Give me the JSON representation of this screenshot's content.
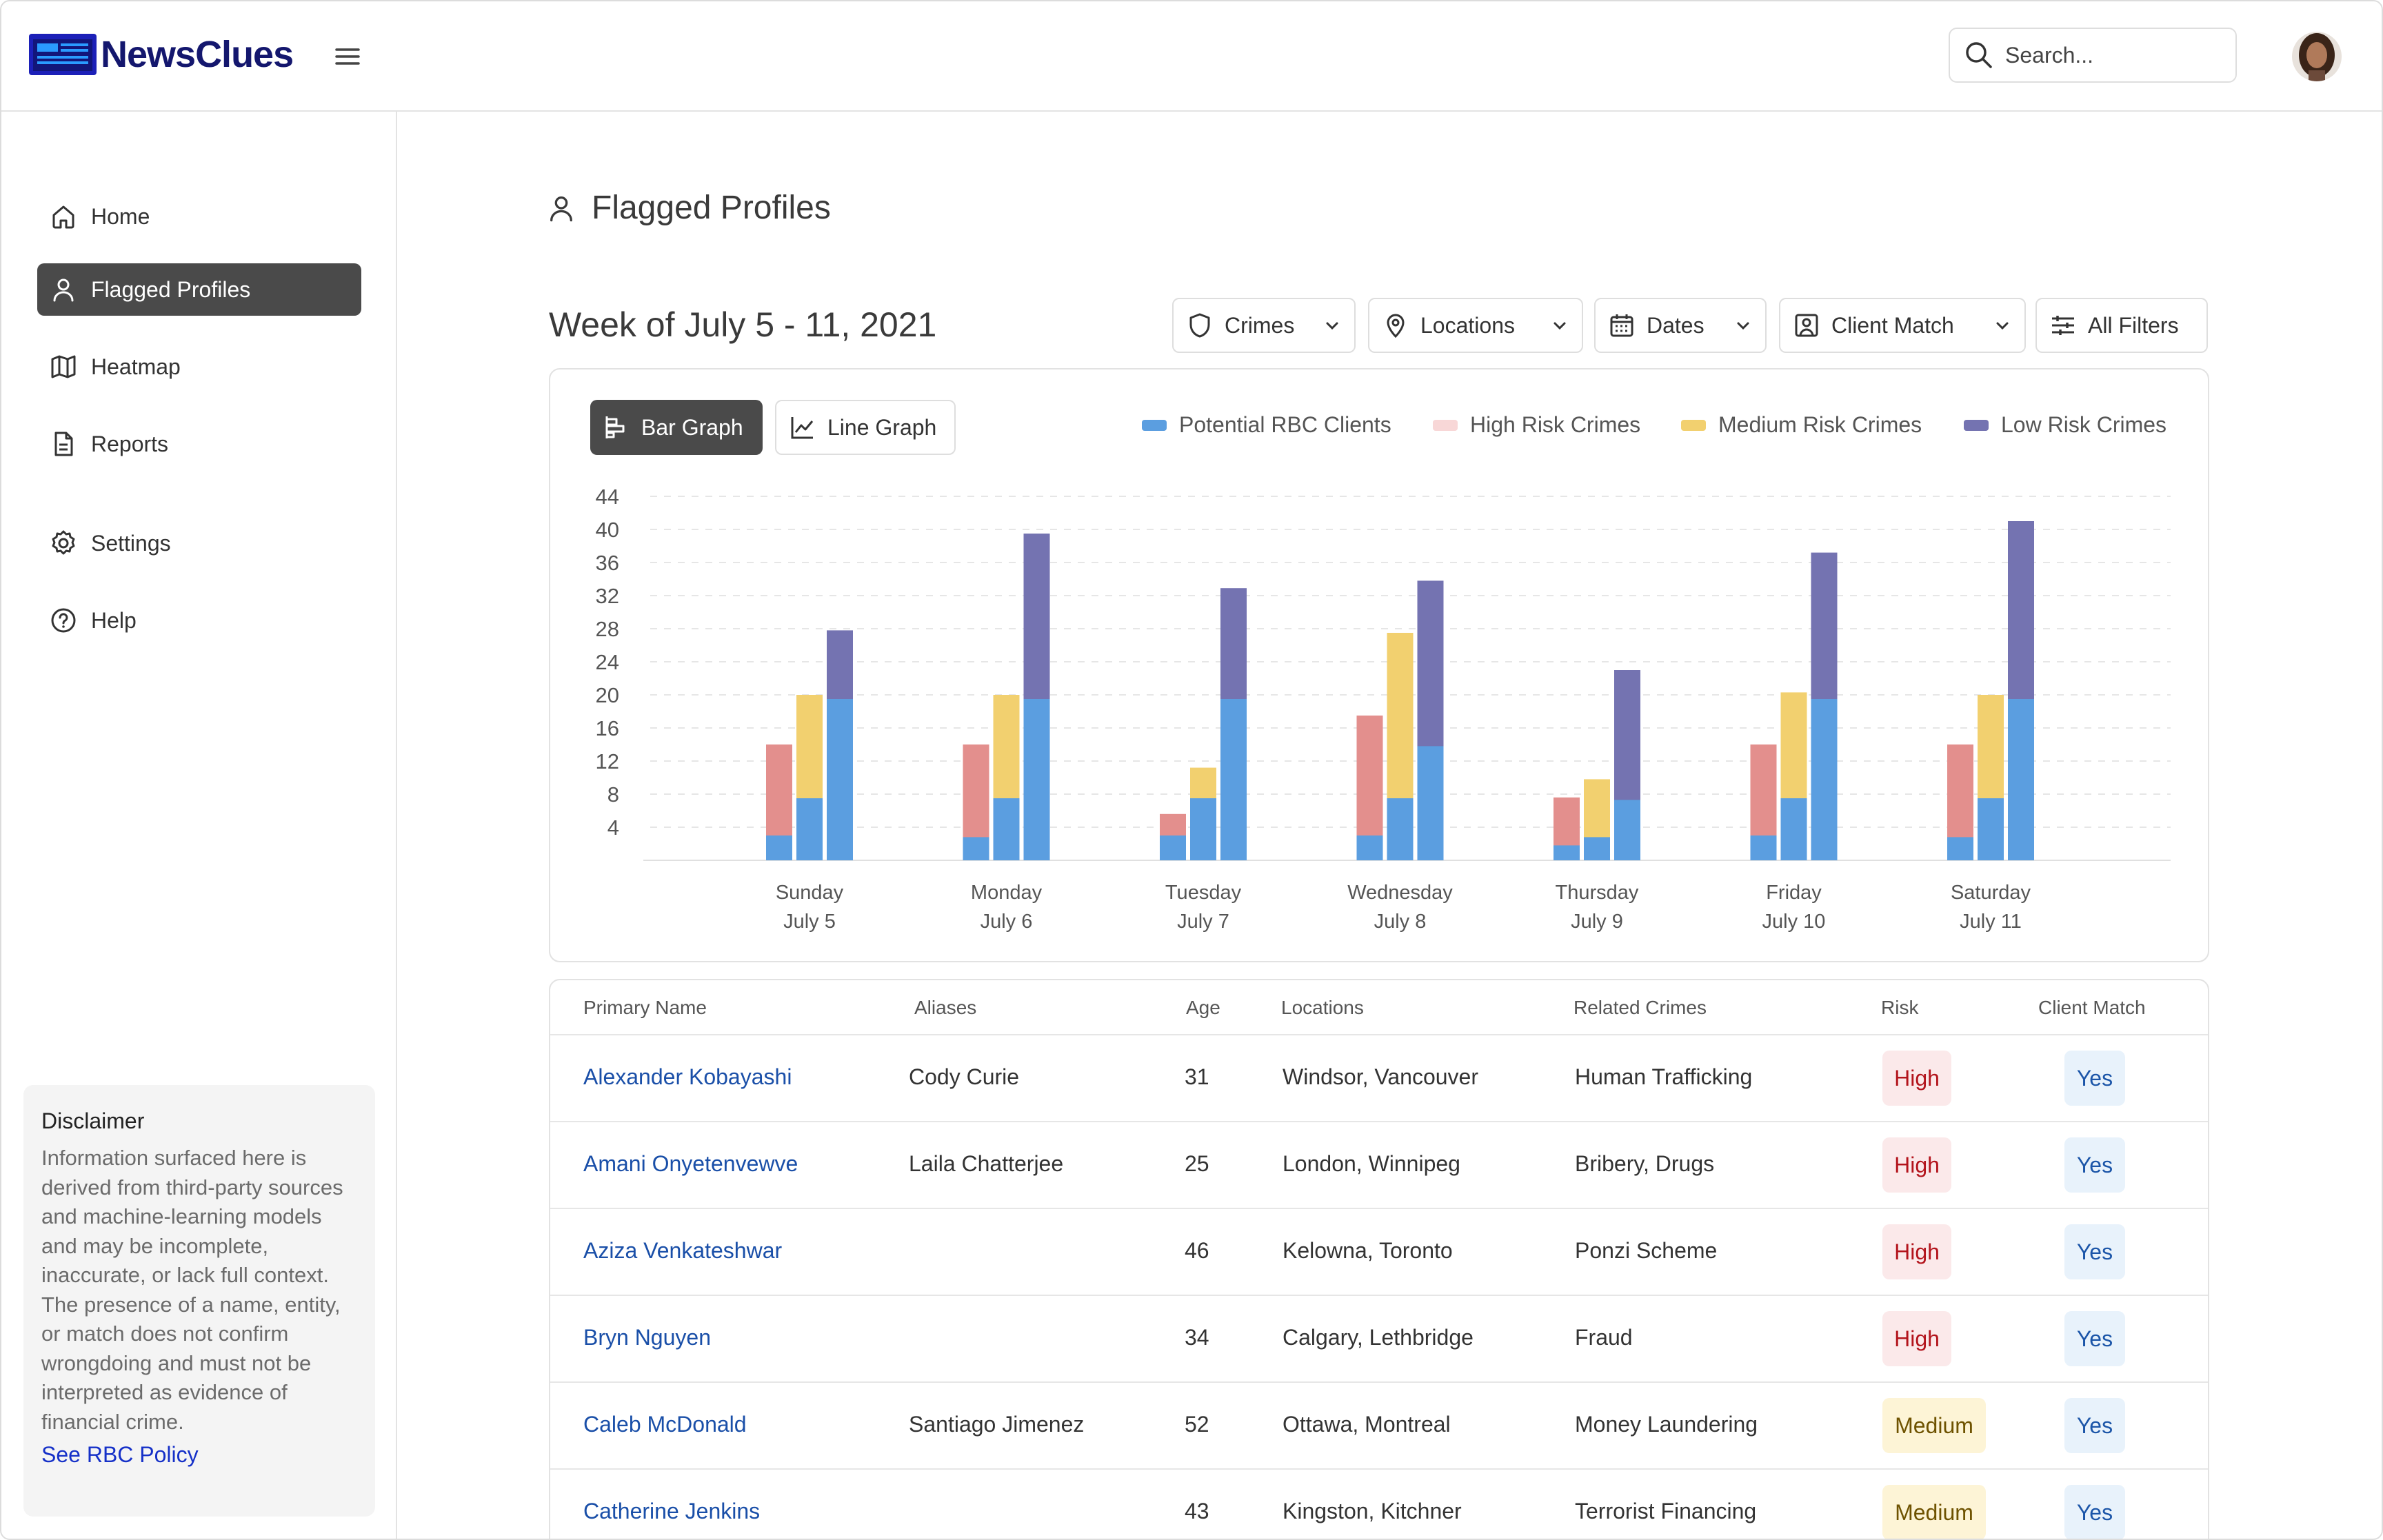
{
  "app": {
    "name": "NewsClues"
  },
  "header": {
    "search_placeholder": "Search..."
  },
  "sidebar": {
    "items": [
      {
        "label": "Home",
        "icon": "home-icon"
      },
      {
        "label": "Flagged Profiles",
        "icon": "user-icon",
        "active": true
      },
      {
        "label": "Heatmap",
        "icon": "map-icon"
      },
      {
        "label": "Reports",
        "icon": "document-icon"
      },
      {
        "label": "Settings",
        "icon": "gear-icon"
      },
      {
        "label": "Help",
        "icon": "help-circle-icon"
      }
    ],
    "disclaimer": {
      "title": "Disclaimer",
      "text": "Information surfaced here is derived from third-party sources and machine-learning models and may be incomplete, inaccurate, or lack full context. The presence of a name, entity, or match does not confirm wrongdoing and must not be interpreted as evidence of financial crime.",
      "link": "See RBC Policy"
    }
  },
  "main": {
    "page_title": "Flagged Profiles",
    "week_title": "Week of July 5 - 11, 2021",
    "filters": [
      {
        "label": "Crimes",
        "icon": "shield-icon"
      },
      {
        "label": "Locations",
        "icon": "location-pin-icon"
      },
      {
        "label": "Dates",
        "icon": "calendar-icon"
      },
      {
        "label": "Client Match",
        "icon": "user-square-icon"
      },
      {
        "label": "All Filters",
        "icon": "sliders-icon"
      }
    ],
    "chart_tabs": [
      {
        "label": "Bar Graph",
        "active": true
      },
      {
        "label": "Line Graph",
        "active": false
      }
    ]
  },
  "colors": {
    "potential_rbc_clients": "#5b9ee0",
    "high_risk_crimes": "#e38f8d",
    "medium_risk_crimes": "#f2d06f",
    "low_risk_crimes": "#7473b1"
  },
  "chart_data": {
    "type": "bar",
    "title": "",
    "xlabel": "",
    "ylabel": "",
    "ylim": [
      0,
      44
    ],
    "yticks": [
      4,
      8,
      12,
      16,
      20,
      24,
      28,
      32,
      36,
      40,
      44
    ],
    "grid": true,
    "legend_position": "top-right",
    "categories": [
      {
        "day": "Sunday",
        "date": "July 5"
      },
      {
        "day": "Monday",
        "date": "July 6"
      },
      {
        "day": "Tuesday",
        "date": "July 7"
      },
      {
        "day": "Wednesday",
        "date": "July 8"
      },
      {
        "day": "Thursday",
        "date": "July 9"
      },
      {
        "day": "Friday",
        "date": "July 10"
      },
      {
        "day": "Saturday",
        "date": "July 11"
      }
    ],
    "series": [
      {
        "name": "Potential RBC Clients",
        "segment_of": [
          "High Risk Crimes",
          "Medium Risk Crimes",
          "Low Risk Crimes"
        ],
        "values": [
          [
            3,
            7.5,
            19.5
          ],
          [
            2.8,
            7.5,
            19.5
          ],
          [
            3,
            7.5,
            19.5
          ],
          [
            3,
            7.5,
            13.8
          ],
          [
            1.8,
            2.8,
            7.3
          ],
          [
            3,
            7.5,
            19.5
          ],
          [
            2.8,
            7.5,
            19.5
          ]
        ]
      },
      {
        "name": "High Risk Crimes",
        "values": [
          14,
          14,
          5.6,
          17.5,
          7.6,
          14,
          14
        ]
      },
      {
        "name": "Medium Risk Crimes",
        "values": [
          20,
          20,
          11.2,
          27.5,
          9.8,
          20.3,
          20
        ]
      },
      {
        "name": "Low Risk Crimes",
        "values": [
          27.8,
          39.5,
          32.9,
          33.8,
          23,
          37.2,
          41
        ]
      }
    ]
  },
  "table": {
    "headers": [
      "Primary Name",
      "Aliases",
      "Age",
      "Locations",
      "Related Crimes",
      "Risk",
      "Client Match"
    ],
    "rows": [
      {
        "name": "Alexander Kobayashi",
        "alias": "Cody Curie",
        "age": "31",
        "locations": "Windsor, Vancouver",
        "crimes": "Human Trafficking",
        "risk": "High",
        "match": "Yes"
      },
      {
        "name": "Amani Onyetenvewve",
        "alias": "Laila Chatterjee",
        "age": "25",
        "locations": "London, Winnipeg",
        "crimes": "Bribery, Drugs",
        "risk": "High",
        "match": "Yes"
      },
      {
        "name": "Aziza Venkateshwar",
        "alias": "",
        "age": "46",
        "locations": "Kelowna, Toronto",
        "crimes": "Ponzi Scheme",
        "risk": "High",
        "match": "Yes"
      },
      {
        "name": "Bryn Nguyen",
        "alias": "",
        "age": "34",
        "locations": "Calgary, Lethbridge",
        "crimes": "Fraud",
        "risk": "High",
        "match": "Yes"
      },
      {
        "name": "Caleb McDonald",
        "alias": "Santiago Jimenez",
        "age": "52",
        "locations": "Ottawa, Montreal",
        "crimes": "Money Laundering",
        "risk": "Medium",
        "match": "Yes"
      },
      {
        "name": "Catherine Jenkins",
        "alias": "",
        "age": "43",
        "locations": "Kingston, Kitchner",
        "crimes": "Terrorist Financing",
        "risk": "Medium",
        "match": "Yes"
      }
    ]
  }
}
